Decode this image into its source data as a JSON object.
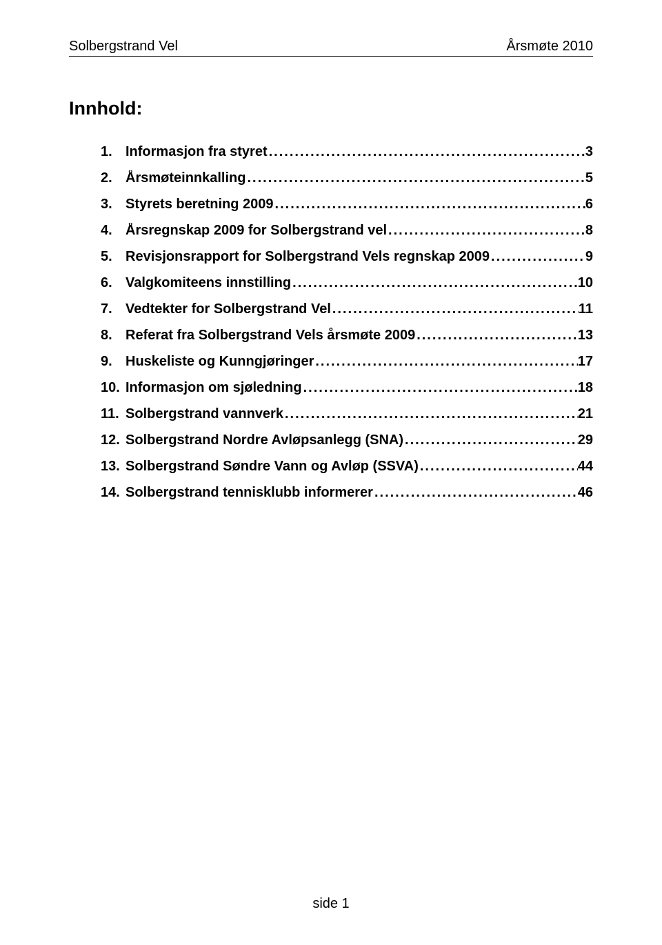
{
  "header": {
    "left": "Solbergstrand Vel",
    "right": "Årsmøte 2010"
  },
  "title": "Innhold:",
  "toc": [
    {
      "num": "1.",
      "label": "Informasjon fra styret",
      "page": "3"
    },
    {
      "num": "2.",
      "label": "Årsmøteinnkalling",
      "page": "5"
    },
    {
      "num": "3.",
      "label": "Styrets beretning 2009",
      "page": "6"
    },
    {
      "num": "4.",
      "label": "Årsregnskap 2009 for Solbergstrand vel",
      "page": "8"
    },
    {
      "num": "5.",
      "label": "Revisjonsrapport for Solbergstrand Vels regnskap 2009",
      "page": "9"
    },
    {
      "num": "6.",
      "label": "Valgkomiteens innstilling",
      "page": "10"
    },
    {
      "num": "7.",
      "label": "Vedtekter for Solbergstrand Vel",
      "page": "11"
    },
    {
      "num": "8.",
      "label": "Referat fra Solbergstrand Vels årsmøte 2009",
      "page": "13"
    },
    {
      "num": "9.",
      "label": "Huskeliste og Kunngjøringer",
      "page": "17"
    },
    {
      "num": "10.",
      "label": "Informasjon om sjøledning",
      "page": "18"
    },
    {
      "num": "11.",
      "label": "Solbergstrand vannverk",
      "page": "21"
    },
    {
      "num": "12.",
      "label": "Solbergstrand Nordre Avløpsanlegg (SNA)",
      "page": "29"
    },
    {
      "num": "13.",
      "label": "Solbergstrand Søndre Vann og Avløp (SSVA)",
      "page": "44"
    },
    {
      "num": "14.",
      "label": "Solbergstrand tennisklubb informerer",
      "page": "46"
    }
  ],
  "footer": "side 1"
}
